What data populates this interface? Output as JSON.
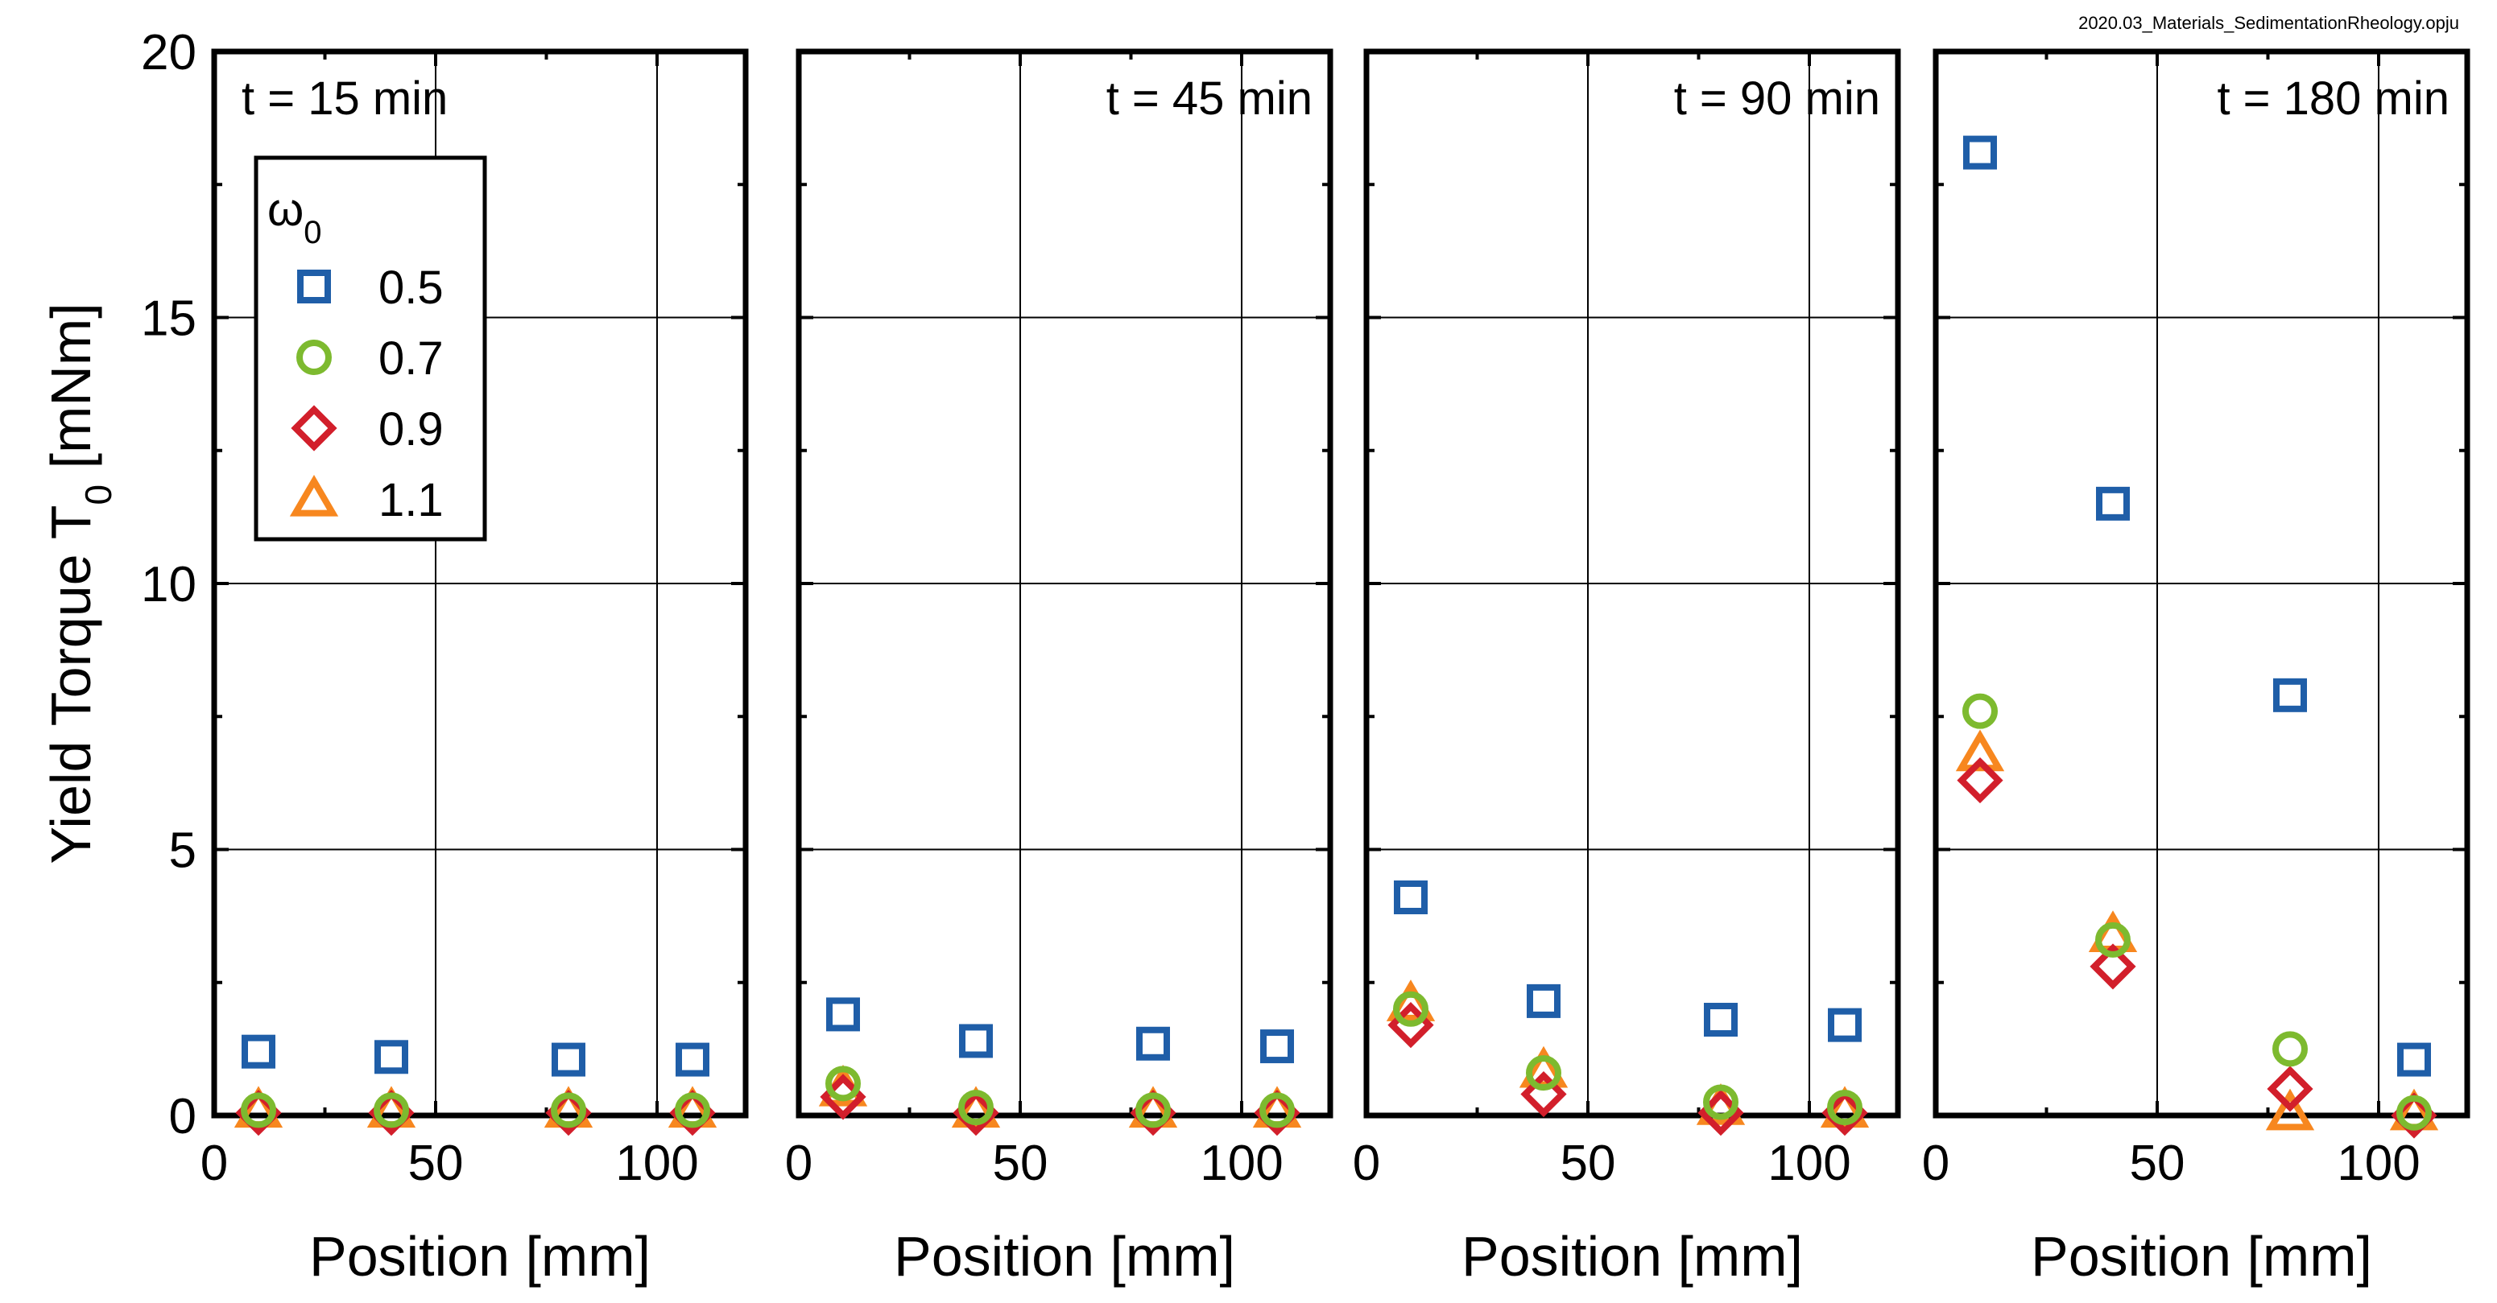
{
  "file_label": "2020.03_Materials_SedimentationRheology.opju",
  "chart_data": {
    "type": "scatter",
    "ylabel": "Yield Torque T",
    "ylabel_sub": "0",
    "ylabel_unit": " [mNm]",
    "xlabel": "Position [mm]",
    "xlim": [
      0,
      120
    ],
    "ylim": [
      0,
      20
    ],
    "x_ticks": [
      0,
      50,
      100
    ],
    "y_ticks": [
      0,
      5,
      10,
      15,
      20
    ],
    "grid": true,
    "legend": {
      "title": "ω",
      "title_sub": "0",
      "placement": "top-left of first panel",
      "entries": [
        {
          "label": "0.5",
          "marker": "square",
          "color": "#1f5ea8"
        },
        {
          "label": "0.7",
          "marker": "circle",
          "color": "#7dba2f"
        },
        {
          "label": "0.9",
          "marker": "diamond",
          "color": "#d21f2b"
        },
        {
          "label": "1.1",
          "marker": "triangle",
          "color": "#f7871f"
        }
      ]
    },
    "panels": [
      {
        "label": "t = 15 min",
        "series": [
          {
            "name": "0.5",
            "x": [
              10,
              40,
              80,
              108
            ],
            "y": [
              1.2,
              1.1,
              1.05,
              1.05
            ]
          },
          {
            "name": "0.7",
            "x": [
              10,
              40,
              80,
              108
            ],
            "y": [
              0.1,
              0.1,
              0.1,
              0.1
            ]
          },
          {
            "name": "0.9",
            "x": [
              10,
              40,
              80,
              108
            ],
            "y": [
              0.05,
              0.05,
              0.05,
              0.05
            ]
          },
          {
            "name": "1.1",
            "x": [
              10,
              40,
              80,
              108
            ],
            "y": [
              0.1,
              0.1,
              0.1,
              0.1
            ]
          }
        ]
      },
      {
        "label": "t = 45 min",
        "series": [
          {
            "name": "0.5",
            "x": [
              10,
              40,
              80,
              108
            ],
            "y": [
              1.9,
              1.4,
              1.35,
              1.3
            ]
          },
          {
            "name": "0.7",
            "x": [
              10,
              40,
              80,
              108
            ],
            "y": [
              0.6,
              0.15,
              0.1,
              0.1
            ]
          },
          {
            "name": "0.9",
            "x": [
              10,
              40,
              80,
              108
            ],
            "y": [
              0.35,
              0.05,
              0.05,
              0.05
            ]
          },
          {
            "name": "1.1",
            "x": [
              10,
              40,
              80,
              108
            ],
            "y": [
              0.5,
              0.1,
              0.1,
              0.1
            ]
          }
        ]
      },
      {
        "label": "t = 90 min",
        "series": [
          {
            "name": "0.5",
            "x": [
              10,
              40,
              80,
              108
            ],
            "y": [
              4.1,
              2.15,
              1.8,
              1.7
            ]
          },
          {
            "name": "0.7",
            "x": [
              10,
              40,
              80,
              108
            ],
            "y": [
              2.0,
              0.8,
              0.25,
              0.15
            ]
          },
          {
            "name": "0.9",
            "x": [
              10,
              40,
              80,
              108
            ],
            "y": [
              1.7,
              0.4,
              0.05,
              0.05
            ]
          },
          {
            "name": "1.1",
            "x": [
              10,
              40,
              80,
              108
            ],
            "y": [
              2.1,
              0.85,
              0.15,
              0.1
            ]
          }
        ]
      },
      {
        "label": "t = 180 min",
        "series": [
          {
            "name": "0.5",
            "x": [
              10,
              40,
              80,
              108
            ],
            "y": [
              18.1,
              11.5,
              7.9,
              1.05
            ]
          },
          {
            "name": "0.7",
            "x": [
              10,
              40,
              80,
              108
            ],
            "y": [
              7.6,
              3.3,
              1.25,
              0.05
            ]
          },
          {
            "name": "0.9",
            "x": [
              10,
              40,
              80,
              108
            ],
            "y": [
              6.3,
              2.8,
              0.5,
              0.0
            ]
          },
          {
            "name": "1.1",
            "x": [
              10,
              40,
              80,
              108
            ],
            "y": [
              6.8,
              3.4,
              0.05,
              0.05
            ]
          }
        ]
      }
    ]
  }
}
